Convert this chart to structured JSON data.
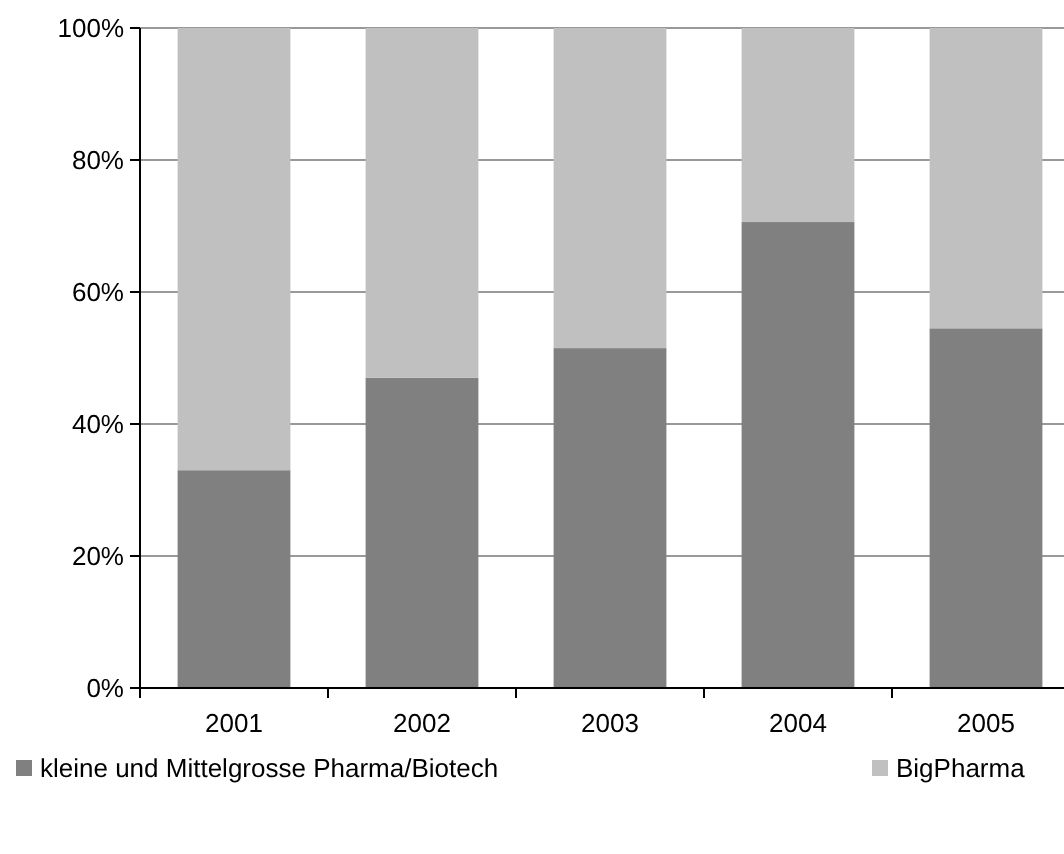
{
  "chart_data": {
    "type": "bar",
    "stacked": true,
    "categories": [
      "2001",
      "2002",
      "2003",
      "2004",
      "2005"
    ],
    "series": [
      {
        "name": "kleine und Mittelgrosse Pharma/Biotech",
        "color": "#808080",
        "values": [
          33,
          47,
          51.5,
          70.6,
          54.5
        ]
      },
      {
        "name": "BigPharma",
        "color": "#c0c0c0",
        "values": [
          67,
          53,
          48.5,
          29.4,
          45.5
        ]
      }
    ],
    "ylim": [
      0,
      100
    ],
    "yticks": [
      {
        "value": 0,
        "label": "0%"
      },
      {
        "value": 20,
        "label": "20%"
      },
      {
        "value": 40,
        "label": "40%"
      },
      {
        "value": 60,
        "label": "60%"
      },
      {
        "value": 80,
        "label": "80%"
      },
      {
        "value": 100,
        "label": "100%"
      }
    ],
    "grid": "y",
    "legend": "bottom"
  }
}
